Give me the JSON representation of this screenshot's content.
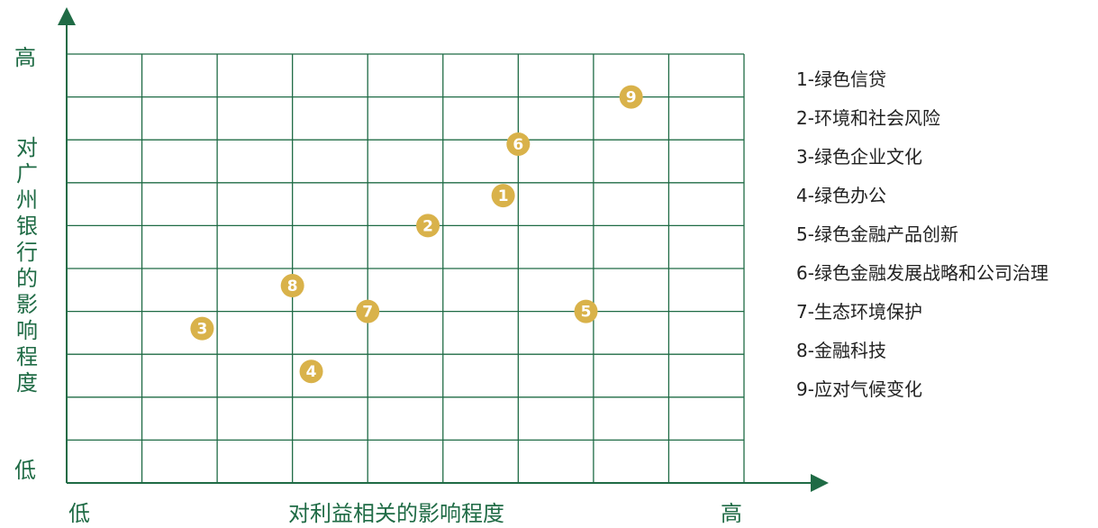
{
  "chart_data": {
    "type": "scatter",
    "xlabel": "对利益相关的影响程度",
    "ylabel": "对广州银行的影响程度",
    "x_low_label": "低",
    "x_high_label": "高",
    "y_low_label": "低",
    "y_high_label": "高",
    "xlim": [
      0,
      9
    ],
    "ylim": [
      0,
      10
    ],
    "grid": true,
    "legend_position": "right",
    "colors": {
      "axis": "#1f6b45",
      "grid": "#1f6b45",
      "point": "#d9b24a",
      "point_text": "#ffffff",
      "legend_text": "#222222"
    },
    "points": [
      {
        "label": "1",
        "x": 5.8,
        "y": 6.7
      },
      {
        "label": "2",
        "x": 4.8,
        "y": 6.0
      },
      {
        "label": "3",
        "x": 1.8,
        "y": 3.6
      },
      {
        "label": "4",
        "x": 3.25,
        "y": 2.6
      },
      {
        "label": "5",
        "x": 6.9,
        "y": 4.0
      },
      {
        "label": "6",
        "x": 6.0,
        "y": 7.9
      },
      {
        "label": "7",
        "x": 4.0,
        "y": 4.0
      },
      {
        "label": "8",
        "x": 3.0,
        "y": 4.6
      },
      {
        "label": "9",
        "x": 7.5,
        "y": 9.0
      }
    ],
    "legend": [
      "1-绿色信贷",
      "2-环境和社会风险",
      "3-绿色企业文化",
      "4-绿色办公",
      "5-绿色金融产品创新",
      "6-绿色金融发展战略和公司治理",
      "7-生态环境保护",
      "8-金融科技",
      "9-应对气候变化"
    ]
  }
}
